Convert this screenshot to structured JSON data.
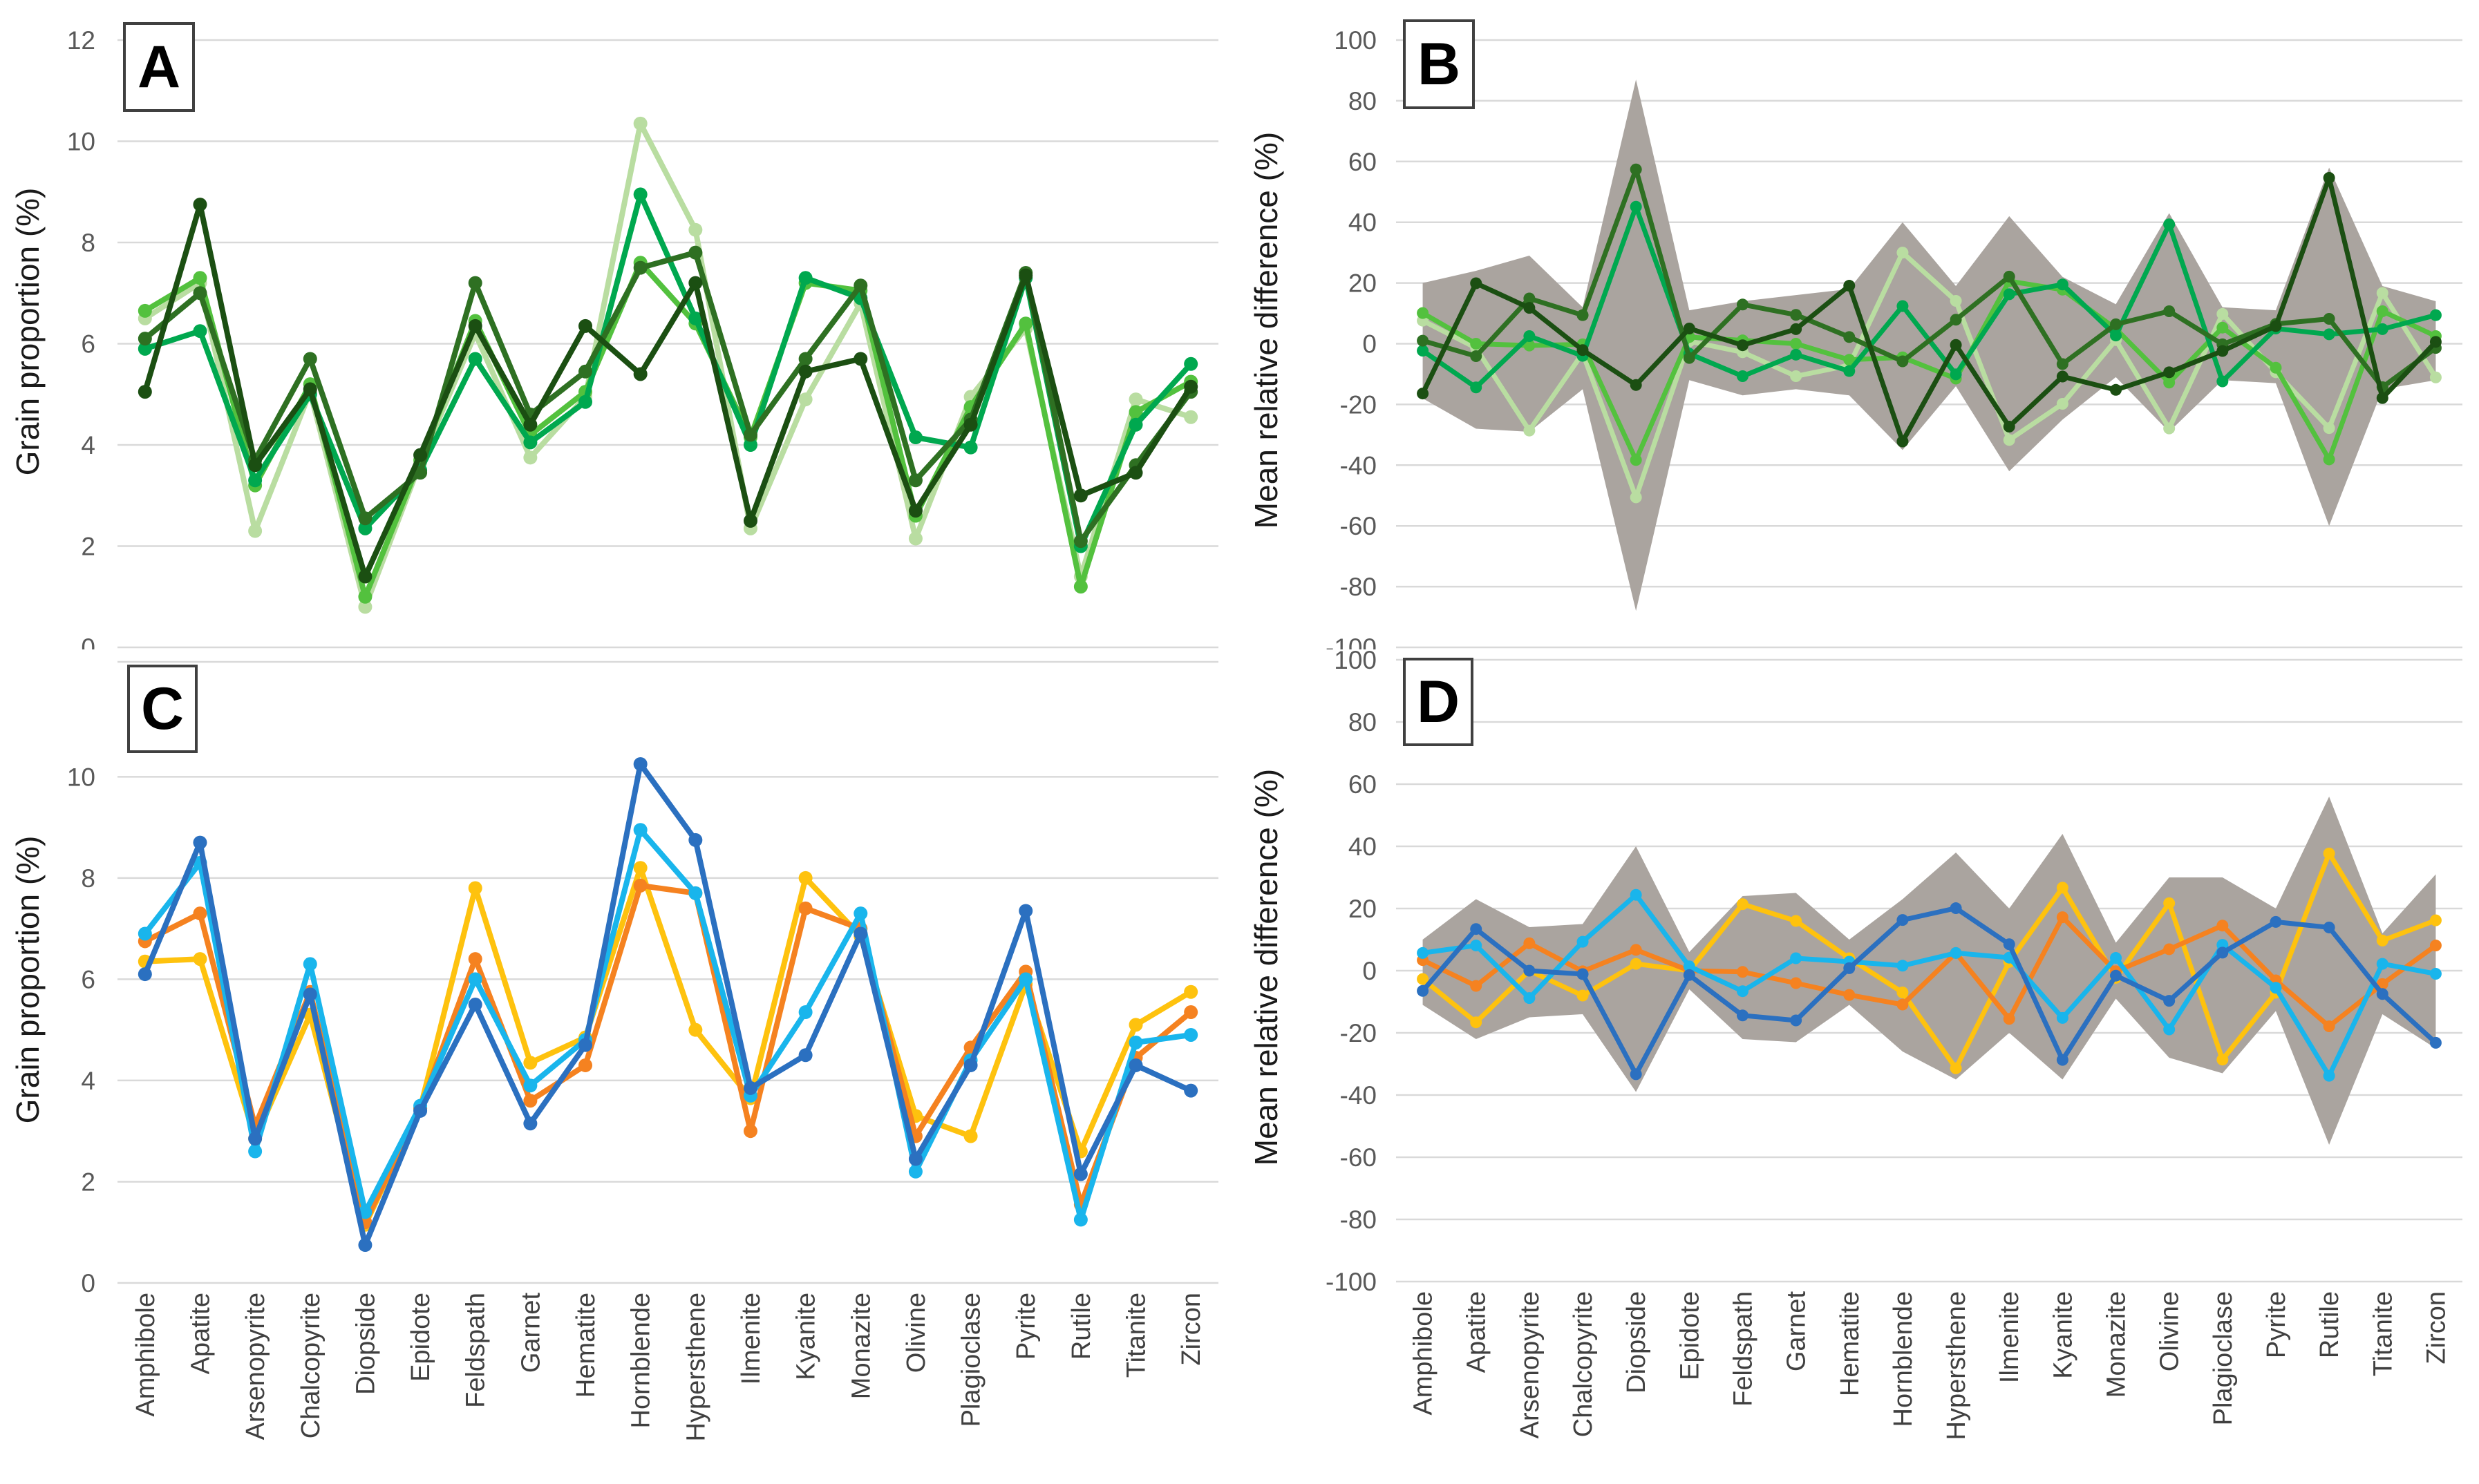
{
  "style": {
    "background": "#ffffff",
    "gridline_color": "#d9d9d9",
    "tick_label_color": "#595959",
    "category_label_color": "#404040",
    "band_color": "#aaa49f",
    "panel_letter_color": "#000000"
  },
  "categories": [
    "Amphibole",
    "Apatite",
    "Arsenopyrite",
    "Chalcopyrite",
    "Diopside",
    "Epidote",
    "Feldspath",
    "Garnet",
    "Hematite",
    "Hornblende",
    "Hypersthene",
    "Ilmenite",
    "Kyanite",
    "Monazite",
    "Olivine",
    "Plagioclase",
    "Pyrite",
    "Rutile",
    "Titanite",
    "Zircon"
  ],
  "chart_data": [
    {
      "id": "A",
      "label": "A",
      "type": "line",
      "ylabel": "Grain proportion (%)",
      "ylim": [
        0,
        12
      ],
      "yticks": [
        12,
        10,
        8,
        6,
        4,
        2,
        0
      ],
      "legend_position": "none",
      "grid": true,
      "series": [
        {
          "name": "pale-green",
          "color": "#b9dda1",
          "values": [
            6.5,
            7.2,
            2.3,
            5.05,
            0.8,
            3.65,
            6.2,
            3.75,
            4.95,
            10.35,
            8.25,
            2.35,
            4.9,
            6.8,
            2.15,
            4.95,
            6.3,
            1.4,
            4.9,
            4.55
          ]
        },
        {
          "name": "light-green",
          "color": "#53c13e",
          "values": [
            6.65,
            7.3,
            3.2,
            5.2,
            1.0,
            3.7,
            6.45,
            4.2,
            5.05,
            7.6,
            6.4,
            4.15,
            7.2,
            7.05,
            2.6,
            4.75,
            6.4,
            1.2,
            4.65,
            5.25
          ]
        },
        {
          "name": "emerald-green",
          "color": "#00a84f",
          "values": [
            5.9,
            6.25,
            3.3,
            5.0,
            2.35,
            3.5,
            5.7,
            4.05,
            4.85,
            8.95,
            6.5,
            4.0,
            7.3,
            6.9,
            4.15,
            3.95,
            7.3,
            2.0,
            4.4,
            5.6
          ]
        },
        {
          "name": "dark-green",
          "color": "#2e7022",
          "values": [
            6.1,
            7.0,
            3.7,
            5.7,
            2.55,
            3.45,
            7.2,
            4.6,
            5.45,
            7.5,
            7.8,
            4.2,
            5.7,
            7.15,
            3.3,
            4.5,
            7.4,
            2.1,
            3.6,
            5.05
          ]
        },
        {
          "name": "darkest-green",
          "color": "#1b4f12",
          "values": [
            5.05,
            8.75,
            3.6,
            5.1,
            1.4,
            3.8,
            6.35,
            4.4,
            6.35,
            5.4,
            7.2,
            2.5,
            5.45,
            5.7,
            2.7,
            4.4,
            7.35,
            3.0,
            3.45,
            5.15
          ]
        }
      ]
    },
    {
      "id": "B",
      "label": "B",
      "type": "line-with-band",
      "ylabel": "Mean relative difference (%)",
      "ylim": [
        -100,
        100
      ],
      "yticks": [
        100,
        80,
        60,
        40,
        20,
        0,
        -20,
        -40,
        -60,
        -80,
        -100
      ],
      "legend_position": "none",
      "grid": true,
      "band": {
        "max": [
          20,
          24,
          29,
          12,
          87,
          11,
          14,
          16,
          18,
          40,
          19,
          42,
          22,
          13,
          43,
          12,
          11,
          58,
          19,
          14
        ],
        "min": [
          -18,
          -28,
          -29,
          -15,
          -88,
          -12,
          -17,
          -15,
          -17,
          -35,
          -14,
          -42,
          -25,
          -11,
          -29,
          -12,
          -13,
          -60,
          -15,
          -12
        ]
      },
      "series": [
        {
          "name": "pale-green",
          "color": "#b9dda1",
          "values": [
            7.6,
            -1.4,
            -28.6,
            -3.1,
            -50.6,
            0.8,
            -2.8,
            -10.7,
            -7.1,
            30.0,
            14.1,
            -31.7,
            -19.8,
            1.2,
            -27.9,
            9.8,
            -9.4,
            -27.8,
            16.7,
            -11.1
          ]
        },
        {
          "name": "light-green",
          "color": "#53c13e",
          "values": [
            10.1,
            0.0,
            -0.6,
            -0.2,
            -38.3,
            2.2,
            1.1,
            0.0,
            -5.3,
            -4.5,
            -11.5,
            20.6,
            17.8,
            4.9,
            -12.8,
            5.3,
            -7.9,
            -38.1,
            10.7,
            2.5
          ]
        },
        {
          "name": "emerald-green",
          "color": "#00a84f",
          "values": [
            -2.3,
            -14.4,
            2.5,
            -4.0,
            45.1,
            -3.3,
            -10.7,
            -3.6,
            -9.0,
            12.4,
            -10.1,
            16.3,
            19.5,
            2.7,
            39.3,
            -12.4,
            5.0,
            3.1,
            4.8,
            9.4
          ]
        },
        {
          "name": "dark-green",
          "color": "#2e7022",
          "values": [
            1.0,
            -4.1,
            14.9,
            9.4,
            57.4,
            -4.7,
            12.9,
            9.5,
            2.2,
            -5.8,
            7.9,
            22.1,
            -6.7,
            6.4,
            10.7,
            -0.2,
            6.5,
            8.2,
            -14.3,
            -1.4
          ]
        },
        {
          "name": "darkest-green",
          "color": "#1b4f12",
          "values": [
            -16.4,
            19.9,
            11.8,
            -2.1,
            -13.6,
            5.0,
            -0.5,
            4.8,
            19.1,
            -32.2,
            -0.4,
            -27.3,
            -10.8,
            -15.2,
            -9.4,
            -2.4,
            5.8,
            54.6,
            -17.9,
            0.6
          ]
        }
      ]
    },
    {
      "id": "C",
      "label": "C",
      "type": "line",
      "ylabel": "Grain proportion (%)",
      "ylim": [
        0,
        12.27
      ],
      "yticks": [
        10,
        8,
        6,
        4,
        2,
        0
      ],
      "legend_position": "none",
      "grid": true,
      "top_border": true,
      "show_categories": true,
      "series": [
        {
          "name": "yellow",
          "color": "#fec20e",
          "values": [
            6.35,
            6.4,
            2.85,
            5.3,
            1.15,
            3.45,
            7.8,
            4.35,
            4.85,
            8.2,
            5.0,
            3.65,
            8.0,
            6.85,
            3.3,
            2.9,
            5.9,
            2.6,
            5.1,
            5.75
          ]
        },
        {
          "name": "orange",
          "color": "#f58220",
          "values": [
            6.75,
            7.3,
            3.1,
            5.75,
            1.2,
            3.45,
            6.4,
            3.6,
            4.3,
            7.85,
            7.7,
            3.0,
            7.4,
            7.0,
            2.9,
            4.65,
            6.15,
            1.55,
            4.45,
            5.35
          ]
        },
        {
          "name": "light-blue",
          "color": "#19b5ec",
          "values": [
            6.9,
            8.3,
            2.6,
            6.3,
            1.4,
            3.5,
            6.0,
            3.9,
            4.8,
            8.95,
            7.7,
            3.7,
            5.35,
            7.3,
            2.2,
            4.4,
            6.0,
            1.25,
            4.75,
            4.9
          ]
        },
        {
          "name": "blue",
          "color": "#2b70c0",
          "values": [
            6.1,
            8.7,
            2.85,
            5.7,
            0.75,
            3.4,
            5.5,
            3.15,
            4.7,
            10.25,
            8.75,
            3.85,
            4.5,
            6.9,
            2.45,
            4.3,
            7.35,
            2.15,
            4.3,
            3.8
          ]
        }
      ]
    },
    {
      "id": "D",
      "label": "D",
      "type": "line-with-band",
      "ylabel": "Mean relative difference (%)",
      "ylim": [
        -100,
        100
      ],
      "yticks": [
        100,
        80,
        60,
        40,
        20,
        0,
        -20,
        -40,
        -60,
        -80,
        -100
      ],
      "legend_position": "none",
      "grid": true,
      "show_categories": true,
      "band": {
        "max": [
          10,
          23,
          14,
          15,
          40,
          6,
          24,
          25,
          10,
          23,
          38,
          20,
          44,
          9,
          30,
          30,
          20,
          56,
          12,
          31
        ],
        "min": [
          -11,
          -22,
          -15,
          -14,
          -39,
          -6,
          -22,
          -23,
          -11,
          -26,
          -35,
          -20,
          -35,
          -9,
          -28,
          -33,
          -13,
          -56,
          -14,
          -25
        ]
      },
      "series": [
        {
          "name": "yellow",
          "color": "#fec20e",
          "values": [
            -2.7,
            -16.6,
            0.0,
            -8.0,
            2.2,
            0.0,
            21.4,
            16.0,
            4.0,
            -7.0,
            -31.4,
            2.8,
            26.7,
            -2.3,
            21.7,
            -28.6,
            -7.1,
            37.7,
            9.7,
            16.2
          ]
        },
        {
          "name": "orange",
          "color": "#f58220",
          "values": [
            3.4,
            -4.9,
            8.8,
            -0.2,
            6.7,
            0.0,
            -0.4,
            -4.0,
            -7.8,
            -10.9,
            5.7,
            -15.5,
            17.2,
            -0.2,
            6.9,
            14.5,
            -3.1,
            -17.9,
            -4.3,
            8.1
          ]
        },
        {
          "name": "light-blue",
          "color": "#19b5ec",
          "values": [
            5.7,
            8.1,
            -8.8,
            9.3,
            24.4,
            1.4,
            -6.6,
            4.0,
            2.9,
            1.6,
            5.7,
            4.2,
            -15.2,
            4.1,
            -18.9,
            8.3,
            -5.5,
            -33.8,
            2.2,
            -1.0
          ]
        },
        {
          "name": "blue",
          "color": "#2b70c0",
          "values": [
            -6.5,
            13.4,
            0.0,
            -1.1,
            -33.3,
            -1.4,
            -14.4,
            -16.0,
            0.8,
            16.3,
            20.1,
            8.5,
            -28.7,
            -1.6,
            -9.7,
            5.8,
            15.7,
            13.9,
            -7.5,
            -23.2
          ]
        }
      ]
    }
  ]
}
